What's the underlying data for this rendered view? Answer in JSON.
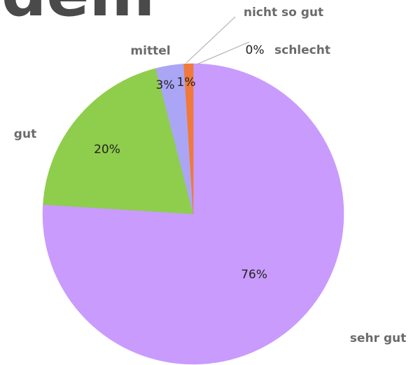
{
  "chart_data": {
    "type": "pie",
    "title": "dem",
    "categories": [
      "schlecht",
      "sehr gut",
      "gut",
      "mittel",
      "nicht so gut"
    ],
    "values": [
      0,
      76,
      20,
      3,
      1
    ],
    "value_labels": [
      "0%",
      "76%",
      "20%",
      "3%",
      "1%"
    ],
    "colors": [
      "#e03a1e",
      "#c99bfd",
      "#8fcd4c",
      "#aaa6f5",
      "#f07a3a"
    ]
  }
}
